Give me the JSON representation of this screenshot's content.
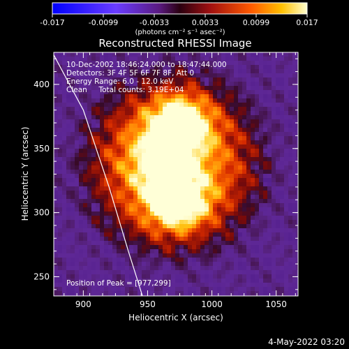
{
  "colorbar": {
    "ticks": [
      "-0.017",
      "-0.0099",
      "-0.0033",
      "0.0033",
      "0.0099",
      "0.017"
    ],
    "unit_label": "(photons cm⁻² s⁻¹ asec⁻²)"
  },
  "title": "Reconstructed RHESSI Image",
  "annotations": {
    "line1": "10-Dec-2002 18:46:24.000 to 18:47:44.000",
    "line2": "Detectors: 3F 4F 5F 6F 7F 8F, Att 0",
    "line3": "Energy Range: 6.0 - 12.0 keV",
    "line4": "Clean     Total counts: 3.19E+04",
    "peak": "Position of Peak = [977,299]"
  },
  "footer": {
    "timestamp": "4-May-2022 03:20"
  },
  "chart_data": {
    "type": "heatmap",
    "title": "Reconstructed RHESSI Image",
    "xlabel": "Heliocentric X (arcsec)",
    "ylabel": "Heliocentric Y (arcsec)",
    "xlim": [
      877,
      1067
    ],
    "ylim": [
      235,
      425
    ],
    "x_ticks": [
      900,
      950,
      1000,
      1050
    ],
    "y_ticks": [
      250,
      300,
      350,
      400
    ],
    "colorbar_range": [
      -0.017,
      0.017
    ],
    "colorbar_ticks": [
      -0.017,
      -0.0099,
      -0.0033,
      0.0033,
      0.0099,
      0.017
    ],
    "peak_position": [
      977,
      299
    ],
    "sources": [
      {
        "x": 975,
        "y": 368,
        "strength": 0.95
      },
      {
        "x": 973,
        "y": 310,
        "strength": 1.0
      },
      {
        "x": 960,
        "y": 340,
        "strength": 0.55
      }
    ],
    "limb_curve": [
      [
        877,
        423
      ],
      [
        900,
        380
      ],
      [
        920,
        320
      ],
      [
        935,
        270
      ],
      [
        946,
        235
      ]
    ]
  }
}
